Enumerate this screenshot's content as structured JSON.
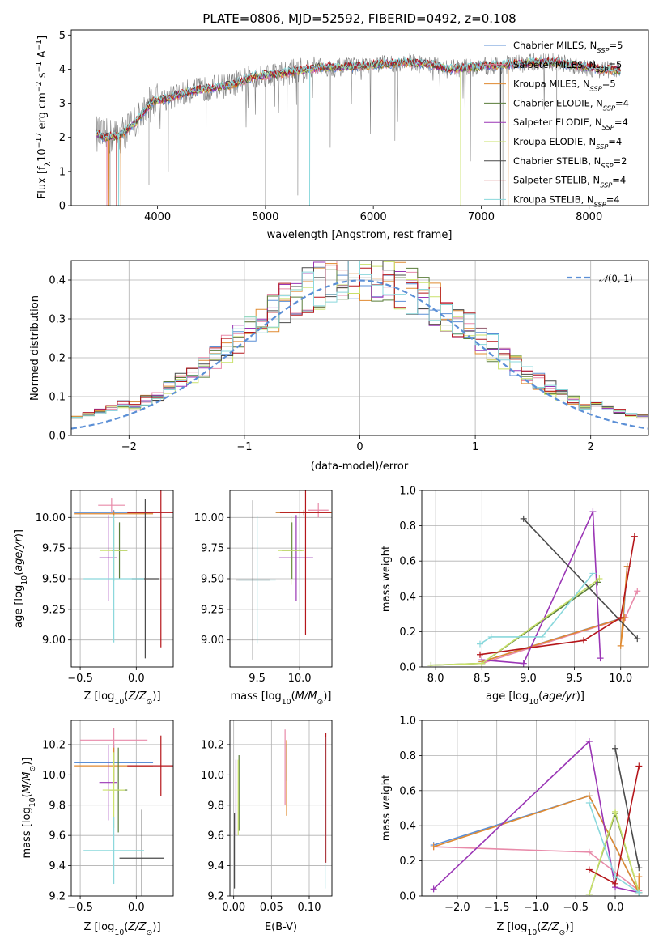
{
  "figure": {
    "title": "PLATE=0806, MJD=52592, FIBERID=0492, z=0.108"
  },
  "colors": {
    "chabrier_miles": "#5b8fd6",
    "salpeter_miles": "#e88aa9",
    "kroupa_miles": "#e08a30",
    "chabrier_elodie": "#5a7d3a",
    "salpeter_elodie": "#9a35b5",
    "kroupa_elodie": "#c9e16a",
    "chabrier_stelib": "#4a4a4a",
    "salpeter_stelib": "#b5161b",
    "kroupa_stelib": "#8ad8dc",
    "normal_curve": "#5b8fd6",
    "data_gray": "#808080",
    "grid": "#b0b0b0"
  },
  "chart_data": [
    {
      "type": "line",
      "panel": "spectrum",
      "xlabel": "wavelength [Angstrom, rest frame]",
      "ylabel": "Flux [f_λ 10^-17 erg cm^-2 s^-1 A^-1]",
      "xlim": [
        3200,
        8550
      ],
      "ylim": [
        0,
        5.15
      ],
      "xticks": [
        4000,
        5000,
        6000,
        7000,
        8000
      ],
      "yticks": [
        0,
        1,
        2,
        3,
        4,
        5
      ],
      "grid": false,
      "legend_position": "right",
      "continuum": {
        "x": [
          3420,
          3500,
          3650,
          3800,
          3950,
          4100,
          4300,
          4500,
          4700,
          4900,
          5100,
          5300,
          5500,
          5700,
          5900,
          6100,
          6300,
          6500,
          6700,
          6900,
          7100,
          7300,
          7500,
          7700,
          7900,
          8100,
          8300
        ],
        "y": [
          2.15,
          2.0,
          2.05,
          2.45,
          3.05,
          3.15,
          3.35,
          3.45,
          3.55,
          3.8,
          3.85,
          3.95,
          4.05,
          4.05,
          4.1,
          4.15,
          4.2,
          4.15,
          4.0,
          4.05,
          4.1,
          4.15,
          4.2,
          4.2,
          4.1,
          4.0,
          3.95
        ]
      },
      "series": [
        {
          "name": "Chabrier MILES, N_SSP=5",
          "color_key": "chabrier_miles"
        },
        {
          "name": "Salpeter MILES, N_SSP=5",
          "color_key": "salpeter_miles"
        },
        {
          "name": "Kroupa MILES, N_SSP=5",
          "color_key": "kroupa_miles"
        },
        {
          "name": "Chabrier ELODIE, N_SSP=4",
          "color_key": "chabrier_elodie"
        },
        {
          "name": "Salpeter ELODIE, N_SSP=4",
          "color_key": "salpeter_elodie"
        },
        {
          "name": "Kroupa ELODIE, N_SSP=4",
          "color_key": "kroupa_elodie"
        },
        {
          "name": "Chabrier STELIB, N_SSP=2",
          "color_key": "chabrier_stelib"
        },
        {
          "name": "Salpeter STELIB, N_SSP=4",
          "color_key": "salpeter_stelib"
        },
        {
          "name": "Kroupa STELIB, N_SSP=4",
          "color_key": "kroupa_stelib"
        }
      ],
      "legend_labels": [
        {
          "prefix": "Chabrier MILES, N",
          "sub": "SSP",
          "suffix": "=5"
        },
        {
          "prefix": "Salpeter MILES, N",
          "sub": "SSP",
          "suffix": "=5"
        },
        {
          "prefix": "Kroupa MILES, N",
          "sub": "SSP",
          "suffix": "=5"
        },
        {
          "prefix": "Chabrier ELODIE, N",
          "sub": "SSP",
          "suffix": "=4"
        },
        {
          "prefix": "Salpeter ELODIE, N",
          "sub": "SSP",
          "suffix": "=4"
        },
        {
          "prefix": "Kroupa ELODIE, N",
          "sub": "SSP",
          "suffix": "=4"
        },
        {
          "prefix": "Chabrier STELIB, N",
          "sub": "SSP",
          "suffix": "=2"
        },
        {
          "prefix": "Salpeter STELIB, N",
          "sub": "SSP",
          "suffix": "=4"
        },
        {
          "prefix": "Kroupa STELIB, N",
          "sub": "SSP",
          "suffix": "=4"
        }
      ]
    },
    {
      "type": "line",
      "panel": "residuals",
      "xlabel": "(data-model)/error",
      "ylabel": "Normed distribution",
      "xlim": [
        -2.5,
        2.5
      ],
      "ylim": [
        0,
        0.45
      ],
      "xticks": [
        -2,
        -1,
        0,
        1,
        2
      ],
      "yticks": [
        0.0,
        0.1,
        0.2,
        0.3,
        0.4
      ],
      "grid": true,
      "legend_position": "top-right",
      "normal_label": "N(0, 1)",
      "bin_width": 0.1,
      "bin_start": -2.5
    },
    {
      "type": "scatter",
      "panel": "age_vs_Z",
      "xlabel": "Z [log10(Z/Z⊙)]",
      "ylabel": "age [log10(age/yr)]",
      "xlim": [
        -0.58,
        0.33
      ],
      "ylim": [
        8.78,
        10.22
      ],
      "xticks": [
        -0.5,
        0.0
      ],
      "yticks": [
        9.0,
        9.25,
        9.5,
        9.75,
        10.0
      ],
      "grid": true,
      "points": [
        {
          "x": -0.2,
          "y": 10.04,
          "xerr": 0.35,
          "yerr": 0.02,
          "color_key": "chabrier_miles"
        },
        {
          "x": -0.22,
          "y": 10.1,
          "xerr": 0.12,
          "yerr": 0.06,
          "color_key": "salpeter_miles"
        },
        {
          "x": -0.2,
          "y": 10.03,
          "xerr": 0.35,
          "yerr": 0.02,
          "color_key": "kroupa_miles"
        },
        {
          "x": -0.15,
          "y": 9.73,
          "xerr": 0.07,
          "yerr": 0.23,
          "color_key": "chabrier_elodie"
        },
        {
          "x": -0.25,
          "y": 9.67,
          "xerr": 0.08,
          "yerr": 0.35,
          "color_key": "salpeter_elodie"
        },
        {
          "x": -0.2,
          "y": 9.73,
          "xerr": 0.12,
          "yerr": 0.25,
          "color_key": "kroupa_elodie"
        },
        {
          "x": 0.08,
          "y": 9.5,
          "xerr": 0.12,
          "yerr": 0.65,
          "color_key": "chabrier_stelib"
        },
        {
          "x": 0.22,
          "y": 10.04,
          "xerr": 0.3,
          "yerr": 1.1,
          "color_key": "salpeter_stelib"
        },
        {
          "x": -0.2,
          "y": 9.5,
          "xerr": 0.27,
          "yerr": 0.52,
          "color_key": "kroupa_stelib"
        }
      ]
    },
    {
      "type": "scatter",
      "panel": "age_vs_mass",
      "xlabel": "mass [log10(M/M⊙)]",
      "ylabel": "",
      "xlim": [
        9.18,
        10.38
      ],
      "ylim": [
        8.78,
        10.22
      ],
      "xticks": [
        9.5,
        10.0
      ],
      "yticks": [
        9.0,
        9.25,
        9.5,
        9.75,
        10.0
      ],
      "grid": true,
      "points": [
        {
          "x": 10.05,
          "y": 10.04,
          "xerr": 0.33,
          "yerr": 0.02,
          "color_key": "chabrier_miles"
        },
        {
          "x": 10.22,
          "y": 10.06,
          "xerr": 0.12,
          "yerr": 0.06,
          "color_key": "salpeter_miles"
        },
        {
          "x": 10.05,
          "y": 10.04,
          "xerr": 0.33,
          "yerr": 0.02,
          "color_key": "kroupa_miles"
        },
        {
          "x": 9.91,
          "y": 9.73,
          "xerr": 0.12,
          "yerr": 0.23,
          "color_key": "chabrier_elodie"
        },
        {
          "x": 9.96,
          "y": 9.67,
          "xerr": 0.2,
          "yerr": 0.35,
          "color_key": "salpeter_elodie"
        },
        {
          "x": 9.9,
          "y": 9.73,
          "xerr": 0.15,
          "yerr": 0.28,
          "color_key": "kroupa_elodie"
        },
        {
          "x": 9.45,
          "y": 9.49,
          "xerr": 0.2,
          "yerr": 0.65,
          "color_key": "chabrier_stelib"
        },
        {
          "x": 10.07,
          "y": 10.04,
          "xerr": 0.3,
          "yerr": 1.0,
          "color_key": "salpeter_stelib"
        },
        {
          "x": 9.5,
          "y": 9.49,
          "xerr": 0.22,
          "yerr": 0.52,
          "color_key": "kroupa_stelib"
        }
      ]
    },
    {
      "type": "line",
      "panel": "weight_vs_age",
      "xlabel": "age [log10(age/yr)]",
      "ylabel": "mass weight",
      "xlim": [
        7.85,
        10.3
      ],
      "ylim": [
        0,
        1.0
      ],
      "xticks": [
        8.0,
        8.5,
        9.0,
        9.5,
        10.0
      ],
      "yticks": [
        0.0,
        0.2,
        0.4,
        0.6,
        0.8,
        1.0
      ],
      "grid": true,
      "series": [
        {
          "color_key": "chabrier_miles",
          "x": [
            8.5,
            10.03,
            10.07
          ],
          "y": [
            0.03,
            0.28,
            0.57
          ]
        },
        {
          "color_key": "salpeter_miles",
          "x": [
            8.5,
            10.05,
            10.18
          ],
          "y": [
            0.02,
            0.28,
            0.43
          ]
        },
        {
          "color_key": "kroupa_miles",
          "x": [
            8.5,
            10.04,
            10.0,
            10.07
          ],
          "y": [
            0.03,
            0.28,
            0.12,
            0.57
          ]
        },
        {
          "color_key": "chabrier_elodie",
          "x": [
            7.95,
            8.5,
            9.75
          ],
          "y": [
            0.01,
            0.02,
            0.48
          ]
        },
        {
          "color_key": "salpeter_elodie",
          "x": [
            8.5,
            8.95,
            9.7,
            9.78
          ],
          "y": [
            0.04,
            0.02,
            0.88,
            0.05
          ]
        },
        {
          "color_key": "kroupa_elodie",
          "x": [
            7.95,
            8.5,
            9.77
          ],
          "y": [
            0.01,
            0.02,
            0.5
          ]
        },
        {
          "color_key": "chabrier_stelib",
          "x": [
            8.95,
            10.18
          ],
          "y": [
            0.84,
            0.16
          ]
        },
        {
          "color_key": "salpeter_stelib",
          "x": [
            8.48,
            9.6,
            10.0,
            10.15
          ],
          "y": [
            0.07,
            0.15,
            0.28,
            0.74
          ]
        },
        {
          "color_key": "kroupa_stelib",
          "x": [
            8.48,
            8.6,
            9.15,
            9.7
          ],
          "y": [
            0.13,
            0.17,
            0.17,
            0.53
          ]
        }
      ]
    },
    {
      "type": "scatter",
      "panel": "mass_vs_Z",
      "xlabel": "Z [log10(Z/Z⊙)]",
      "ylabel": "mass [log10(M/M⊙)]",
      "xlim": [
        -0.58,
        0.33
      ],
      "ylim": [
        9.2,
        10.36
      ],
      "xticks": [
        -0.5,
        0.0
      ],
      "yticks": [
        9.2,
        9.4,
        9.6,
        9.8,
        10.0,
        10.2
      ],
      "grid": true,
      "points": [
        {
          "x": -0.2,
          "y": 10.08,
          "xerr": 0.35,
          "yerr": 0.12,
          "color_key": "chabrier_miles"
        },
        {
          "x": -0.2,
          "y": 10.23,
          "xerr": 0.3,
          "yerr": 0.08,
          "color_key": "salpeter_miles"
        },
        {
          "x": -0.2,
          "y": 10.06,
          "xerr": 0.35,
          "yerr": 0.12,
          "color_key": "kroupa_miles"
        },
        {
          "x": -0.16,
          "y": 9.9,
          "xerr": 0.08,
          "yerr": 0.28,
          "color_key": "chabrier_elodie"
        },
        {
          "x": -0.25,
          "y": 9.95,
          "xerr": 0.08,
          "yerr": 0.25,
          "color_key": "salpeter_elodie"
        },
        {
          "x": -0.2,
          "y": 9.9,
          "xerr": 0.1,
          "yerr": 0.25,
          "color_key": "kroupa_elodie"
        },
        {
          "x": 0.05,
          "y": 9.45,
          "xerr": 0.2,
          "yerr": 0.32,
          "color_key": "chabrier_stelib"
        },
        {
          "x": 0.22,
          "y": 10.06,
          "xerr": 0.3,
          "yerr": 0.2,
          "color_key": "salpeter_stelib"
        },
        {
          "x": -0.2,
          "y": 9.5,
          "xerr": 0.27,
          "yerr": 0.22,
          "color_key": "kroupa_stelib"
        }
      ]
    },
    {
      "type": "scatter",
      "panel": "mass_vs_ebv",
      "xlabel": "E(B-V)",
      "ylabel": "",
      "xlim": [
        -0.005,
        0.13
      ],
      "ylim": [
        9.2,
        10.36
      ],
      "xticks": [
        0.0,
        0.05,
        0.1
      ],
      "yticks": [
        9.2,
        9.4,
        9.6,
        9.8,
        10.0,
        10.2
      ],
      "grid": true,
      "points": [
        {
          "x": 0.07,
          "y": 10.08,
          "yerr": 0.12,
          "color_key": "chabrier_miles"
        },
        {
          "x": 0.068,
          "y": 10.05,
          "yerr": 0.25,
          "color_key": "salpeter_miles"
        },
        {
          "x": 0.07,
          "y": 9.98,
          "yerr": 0.25,
          "color_key": "kroupa_miles"
        },
        {
          "x": 0.007,
          "y": 9.88,
          "yerr": 0.25,
          "color_key": "chabrier_elodie"
        },
        {
          "x": 0.003,
          "y": 9.85,
          "yerr": 0.25,
          "color_key": "salpeter_elodie"
        },
        {
          "x": 0.006,
          "y": 9.85,
          "yerr": 0.25,
          "color_key": "kroupa_elodie"
        },
        {
          "x": 0.001,
          "y": 9.5,
          "yerr": 0.25,
          "color_key": "chabrier_stelib"
        },
        {
          "x": 0.122,
          "y": 9.85,
          "yerr": 0.43,
          "color_key": "salpeter_stelib"
        },
        {
          "x": 0.121,
          "y": 9.75,
          "yerr": 0.5,
          "color_key": "kroupa_stelib"
        }
      ]
    },
    {
      "type": "line",
      "panel": "weight_vs_Z",
      "xlabel": "Z [log10(Z/Z⊙)]",
      "ylabel": "mass weight",
      "xlim": [
        -2.45,
        0.42
      ],
      "ylim": [
        0,
        1.0
      ],
      "xticks": [
        -2.0,
        -1.5,
        -1.0,
        -0.5,
        0.0
      ],
      "yticks": [
        0.0,
        0.2,
        0.4,
        0.6,
        0.8,
        1.0
      ],
      "grid": true,
      "series": [
        {
          "color_key": "chabrier_miles",
          "x": [
            -2.3,
            -0.33,
            0.3
          ],
          "y": [
            0.29,
            0.57,
            0.02
          ]
        },
        {
          "color_key": "salpeter_miles",
          "x": [
            -2.3,
            -0.33,
            0.3
          ],
          "y": [
            0.28,
            0.25,
            0.03
          ]
        },
        {
          "color_key": "kroupa_miles",
          "x": [
            -2.3,
            -0.33,
            0.3,
            0.3
          ],
          "y": [
            0.28,
            0.57,
            0.02,
            0.11
          ]
        },
        {
          "color_key": "chabrier_elodie",
          "x": [
            -0.33,
            0.0,
            0.3
          ],
          "y": [
            0.01,
            0.47,
            0.02
          ]
        },
        {
          "color_key": "salpeter_elodie",
          "x": [
            -2.3,
            -0.33,
            0.0,
            0.3
          ],
          "y": [
            0.04,
            0.88,
            0.05,
            0.02
          ]
        },
        {
          "color_key": "kroupa_elodie",
          "x": [
            -0.33,
            0.0,
            0.3
          ],
          "y": [
            0.01,
            0.48,
            0.02
          ]
        },
        {
          "color_key": "chabrier_stelib",
          "x": [
            0.0,
            0.3
          ],
          "y": [
            0.84,
            0.16
          ]
        },
        {
          "color_key": "salpeter_stelib",
          "x": [
            -0.33,
            0.0,
            0.3
          ],
          "y": [
            0.15,
            0.07,
            0.74
          ]
        },
        {
          "color_key": "kroupa_stelib",
          "x": [
            -0.33,
            0.0,
            0.3
          ],
          "y": [
            0.53,
            0.11,
            0.02
          ]
        }
      ]
    }
  ]
}
